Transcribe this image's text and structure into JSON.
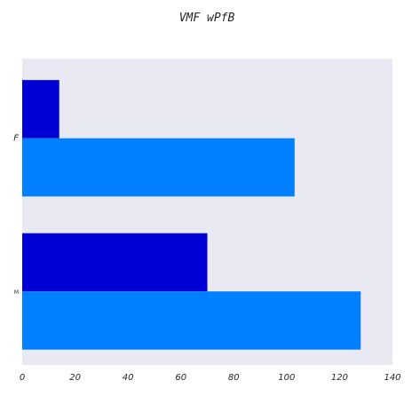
{
  "chart_data": {
    "type": "bar",
    "orientation": "horizontal",
    "title": "VMF wPfB",
    "xlabel": "",
    "ylabel": "",
    "categories": [
      "F",
      "M"
    ],
    "series": [
      {
        "values": [
          14,
          70
        ],
        "color": "#0000d6"
      },
      {
        "values": [
          103,
          128
        ],
        "color": "#007fff"
      }
    ],
    "xlim": [
      0,
      140
    ],
    "xticks": [
      "0",
      "20",
      "40",
      "60",
      "80",
      "100",
      "120",
      "140"
    ],
    "grid": false,
    "background": "#e8e9f2"
  }
}
